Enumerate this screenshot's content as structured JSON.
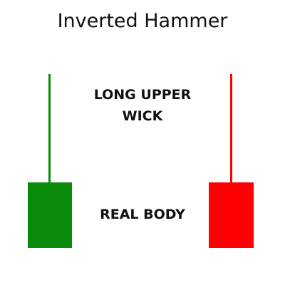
{
  "title": "Inverted Hammer",
  "labels": {
    "upper_wick_line1": "LONG UPPER",
    "upper_wick_line2": "WICK",
    "real_body": "REAL BODY"
  },
  "candles": [
    {
      "name": "bullish",
      "color": "#0a8a0a"
    },
    {
      "name": "bearish",
      "color": "#ff0000"
    }
  ]
}
